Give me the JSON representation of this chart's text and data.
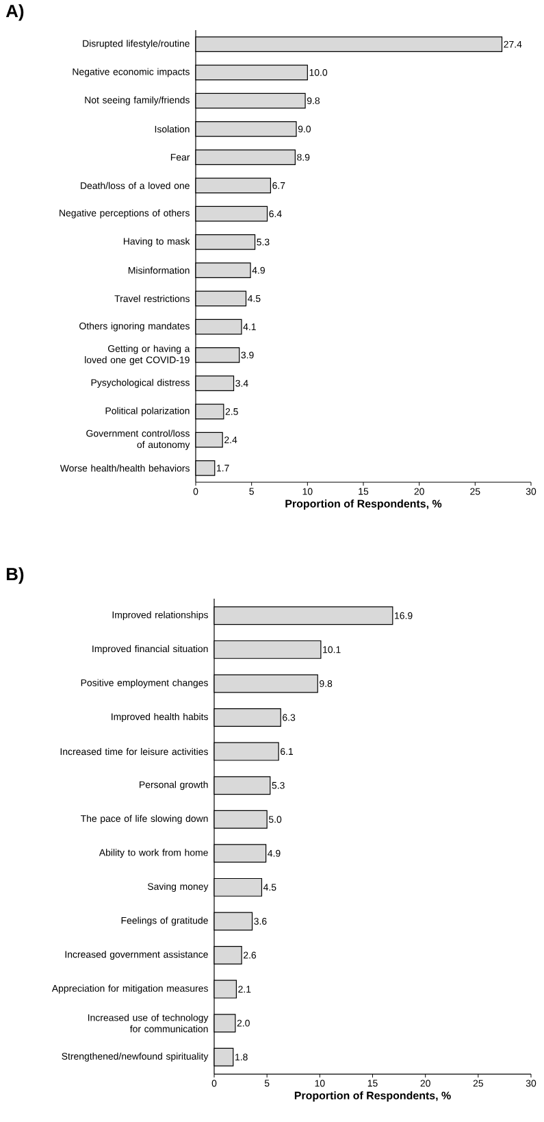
{
  "chart_data": [
    {
      "type": "bar",
      "orientation": "horizontal",
      "title": "A)",
      "xlabel": "Proportion of Respondents, %",
      "categories": [
        "Disrupted lifestyle/routine",
        "Negative economic impacts",
        "Not seeing family/friends",
        "Isolation",
        "Fear",
        "Death/loss of a loved one",
        "Negative perceptions of others",
        "Having to mask",
        "Misinformation",
        "Travel restrictions",
        "Others ignoring mandates",
        "Getting or having a loved one get COVID-19",
        "Pysychological distress",
        "Political polarization",
        "Government control/loss of autonomy",
        "Worse health/health behaviors"
      ],
      "values": [
        27.4,
        10.0,
        9.8,
        9.0,
        8.9,
        6.7,
        6.4,
        5.3,
        4.9,
        4.5,
        4.1,
        3.9,
        3.4,
        2.5,
        2.4,
        1.7
      ],
      "value_labels": [
        "27.4",
        "10.0",
        "9.8",
        "9.0",
        "8.9",
        "6.7",
        "6.4",
        "5.3",
        "4.9",
        "4.5",
        "4.1",
        "3.9",
        "3.4",
        "2.5",
        "2.4",
        "1.7"
      ],
      "color": "#d9d9d9",
      "xlim": [
        0,
        30
      ],
      "xticks": [
        0,
        5,
        10,
        15,
        20,
        25,
        30
      ]
    },
    {
      "type": "bar",
      "orientation": "horizontal",
      "title": "B)",
      "xlabel": "Proportion of Respondents, %",
      "categories": [
        "Improved relationships",
        "Improved financial situation",
        "Positive employment changes",
        "Improved health habits",
        "Increased time for leisure activities",
        "Personal growth",
        "The pace of life slowing down",
        "Ability to work from home",
        "Saving money",
        "Feelings of gratitude",
        "Increased government assistance",
        "Appreciation for mitigation measures",
        "Increased use of technology for communication",
        "Strengthened/newfound spirituality"
      ],
      "values": [
        16.9,
        10.1,
        9.8,
        6.3,
        6.1,
        5.3,
        5.0,
        4.9,
        4.5,
        3.6,
        2.6,
        2.1,
        2.0,
        1.8
      ],
      "value_labels": [
        "16.9",
        "10.1",
        "9.8",
        "6.3",
        "6.1",
        "5.3",
        "5.0",
        "4.9",
        "4.5",
        "3.6",
        "2.6",
        "2.1",
        "2.0",
        "1.8"
      ],
      "color": "#d9d9d9",
      "xlim": [
        0,
        30
      ],
      "xticks": [
        0,
        5,
        10,
        15,
        20,
        25,
        30
      ]
    }
  ]
}
